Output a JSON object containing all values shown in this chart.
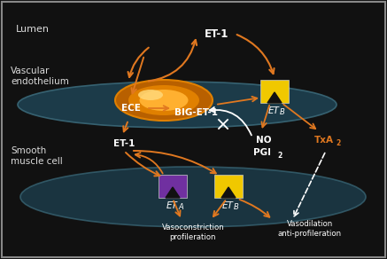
{
  "bg_color": "#111111",
  "orange": "#E07820",
  "yellow": "#F0C800",
  "purple": "#7030A0",
  "white": "#FFFFFF",
  "gray_text": "#AAAAAA",
  "cell_color": "#1E4050",
  "cell_edge": "#3A6878",
  "nucleus_outer": "#B86000",
  "nucleus_mid": "#E08000",
  "nucleus_inner": "#FFB030",
  "nucleus_bright": "#FFD878",
  "lumen_label": "Lumen",
  "vasc_label": "Vascular\nendothelium",
  "smooth_label": "Smooth\nmuscle cell",
  "et1_top": "ET-1",
  "biget1": "BIG-ET-1",
  "ece": "ECE",
  "et1_left": "ET-1",
  "no_label": "NO",
  "pgi2_label": "PGI",
  "txa2_label": "TxA",
  "vasoc_label": "Vasoconstriction\nprofileration",
  "vasod_label": "Vasodilation\nanti-profileration"
}
